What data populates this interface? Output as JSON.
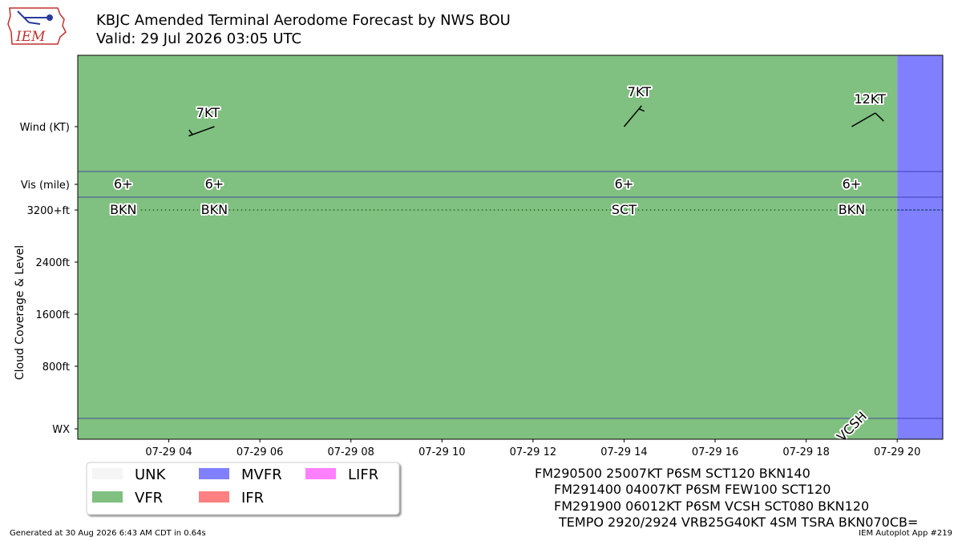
{
  "logo": {
    "text": "IEM"
  },
  "header": {
    "title": "KBJC Amended Terminal Aerodome Forecast by NWS BOU",
    "valid": "Valid: 29 Jul 2026 03:05 UTC"
  },
  "colors": {
    "vfr": "#80c080",
    "mvfr": "#8080ff",
    "ifr": "#ff8080",
    "lifr": "#ff80ff",
    "unk": "#f5f5f5"
  },
  "chart_data": {
    "type": "timeline",
    "y_rows": [
      "Wind (KT)",
      "Vis (mile)",
      "3200+ft",
      "2400ft",
      "1600ft",
      "800ft",
      "WX"
    ],
    "ylabel": "Cloud Coverage & Level",
    "x_ticks": [
      "07-29 04",
      "07-29 06",
      "07-29 08",
      "07-29 10",
      "07-29 12",
      "07-29 14",
      "07-29 16",
      "07-29 18",
      "07-29 20"
    ],
    "x_range_hours": [
      2.0,
      21.0
    ],
    "x_tick_hours": [
      4,
      6,
      8,
      10,
      12,
      14,
      16,
      18,
      20
    ],
    "category_periods": [
      {
        "category": "VFR",
        "start_hour": 2.0,
        "end_hour": 20.0
      },
      {
        "category": "MVFR",
        "start_hour": 20.0,
        "end_hour": 21.0
      }
    ],
    "wind": [
      {
        "hour": 5.0,
        "direction": 250,
        "speed": 7,
        "label": "7KT"
      },
      {
        "hour": 14.0,
        "direction": 40,
        "speed": 7,
        "label": "7KT"
      },
      {
        "hour": 19.0,
        "direction": 60,
        "speed": 12,
        "label": "12KT"
      }
    ],
    "visibility": [
      {
        "hour": 3.0,
        "label": "6+"
      },
      {
        "hour": 5.0,
        "label": "6+"
      },
      {
        "hour": 14.0,
        "label": "6+"
      },
      {
        "hour": 19.0,
        "label": "6+"
      }
    ],
    "clouds": [
      {
        "hour": 3.0,
        "label": "BKN"
      },
      {
        "hour": 5.0,
        "label": "BKN"
      },
      {
        "hour": 14.0,
        "label": "SCT"
      },
      {
        "hour": 19.0,
        "label": "BKN"
      }
    ],
    "weather": [
      {
        "hour": 19.0,
        "label": "VCSH"
      }
    ],
    "legend": {
      "position": "bottom-left",
      "items": [
        {
          "label": "UNK",
          "color": "#f5f5f5"
        },
        {
          "label": "VFR",
          "color": "#80c080"
        },
        {
          "label": "MVFR",
          "color": "#8080ff"
        },
        {
          "label": "IFR",
          "color": "#ff8080"
        },
        {
          "label": "LIFR",
          "color": "#ff80ff"
        }
      ]
    }
  },
  "taf_text": [
    "FM290500 25007KT P6SM SCT120 BKN140",
    "FM291400 04007KT P6SM FEW100 SCT120",
    "FM291900 06012KT P6SM VCSH SCT080 BKN120",
    "TEMPO 2920/2924 VRB25G40KT 4SM TSRA BKN070CB="
  ],
  "footer": {
    "generated": "Generated at 30 Aug 2026 6:43 AM CDT in 0.64s",
    "app": "IEM Autoplot App #219"
  }
}
